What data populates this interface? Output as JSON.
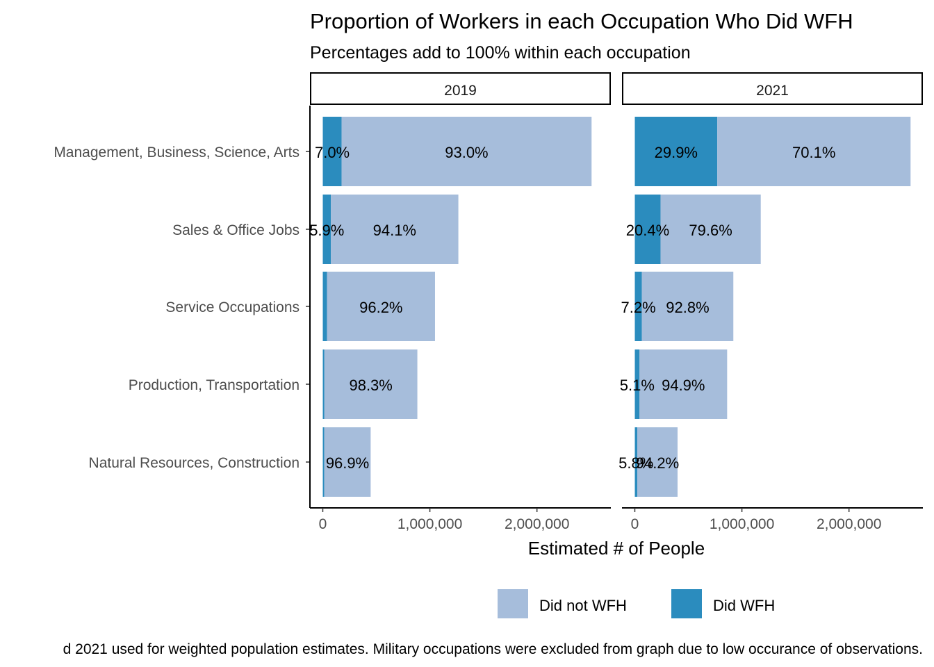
{
  "chart_data": {
    "type": "bar",
    "orientation": "horizontal",
    "stacked": true,
    "title": "Proportion of Workers in each Occupation Who Did WFH",
    "subtitle": "Percentages add to 100% within each occupation",
    "xlabel": "Estimated # of People",
    "ylabel": "",
    "xlim": [
      -120000,
      2690000
    ],
    "x_ticks": [
      {
        "value": 0,
        "label": "0"
      },
      {
        "value": 1000000,
        "label": "1,000,000"
      },
      {
        "value": 2000000,
        "label": "2,000,000"
      }
    ],
    "categories": [
      "Management, Business, Science, Arts",
      "Sales & Office Jobs",
      "Service Occupations",
      "Production, Transportation",
      "Natural Resources, Construction"
    ],
    "legend": {
      "position": "bottom",
      "entries": [
        {
          "name": "Did not WFH",
          "color": "#a6bddb"
        },
        {
          "name": "Did WFH",
          "color": "#2b8cbe"
        }
      ]
    },
    "grid": false,
    "panels": [
      {
        "label": "2019",
        "series": [
          {
            "name": "Did WFH",
            "values": [
              176000,
              75000,
              40000,
              15000,
              14000
            ],
            "labels": [
              "7.0%",
              "5.9%",
              "",
              "",
              ""
            ]
          },
          {
            "name": "Did not WFH",
            "values": [
              2334000,
              1191000,
              1008000,
              868000,
              433000
            ],
            "labels": [
              "93.0%",
              "94.1%",
              "96.2%",
              "98.3%",
              "96.9%"
            ]
          }
        ]
      },
      {
        "label": "2021",
        "series": [
          {
            "name": "Did WFH",
            "values": [
              770000,
              240000,
              66000,
              44000,
              23000
            ],
            "labels": [
              "29.9%",
              "20.4%",
              "7.2%",
              "5.1%",
              "5.8%"
            ]
          },
          {
            "name": "Did not WFH",
            "values": [
              1805000,
              936000,
              854000,
              818000,
              376000
            ],
            "labels": [
              "70.1%",
              "79.6%",
              "92.8%",
              "94.9%",
              "94.2%"
            ]
          }
        ]
      }
    ]
  },
  "caption": "d 2021 used for weighted population estimates. Military occupations were excluded from graph due to low occurance of observations."
}
